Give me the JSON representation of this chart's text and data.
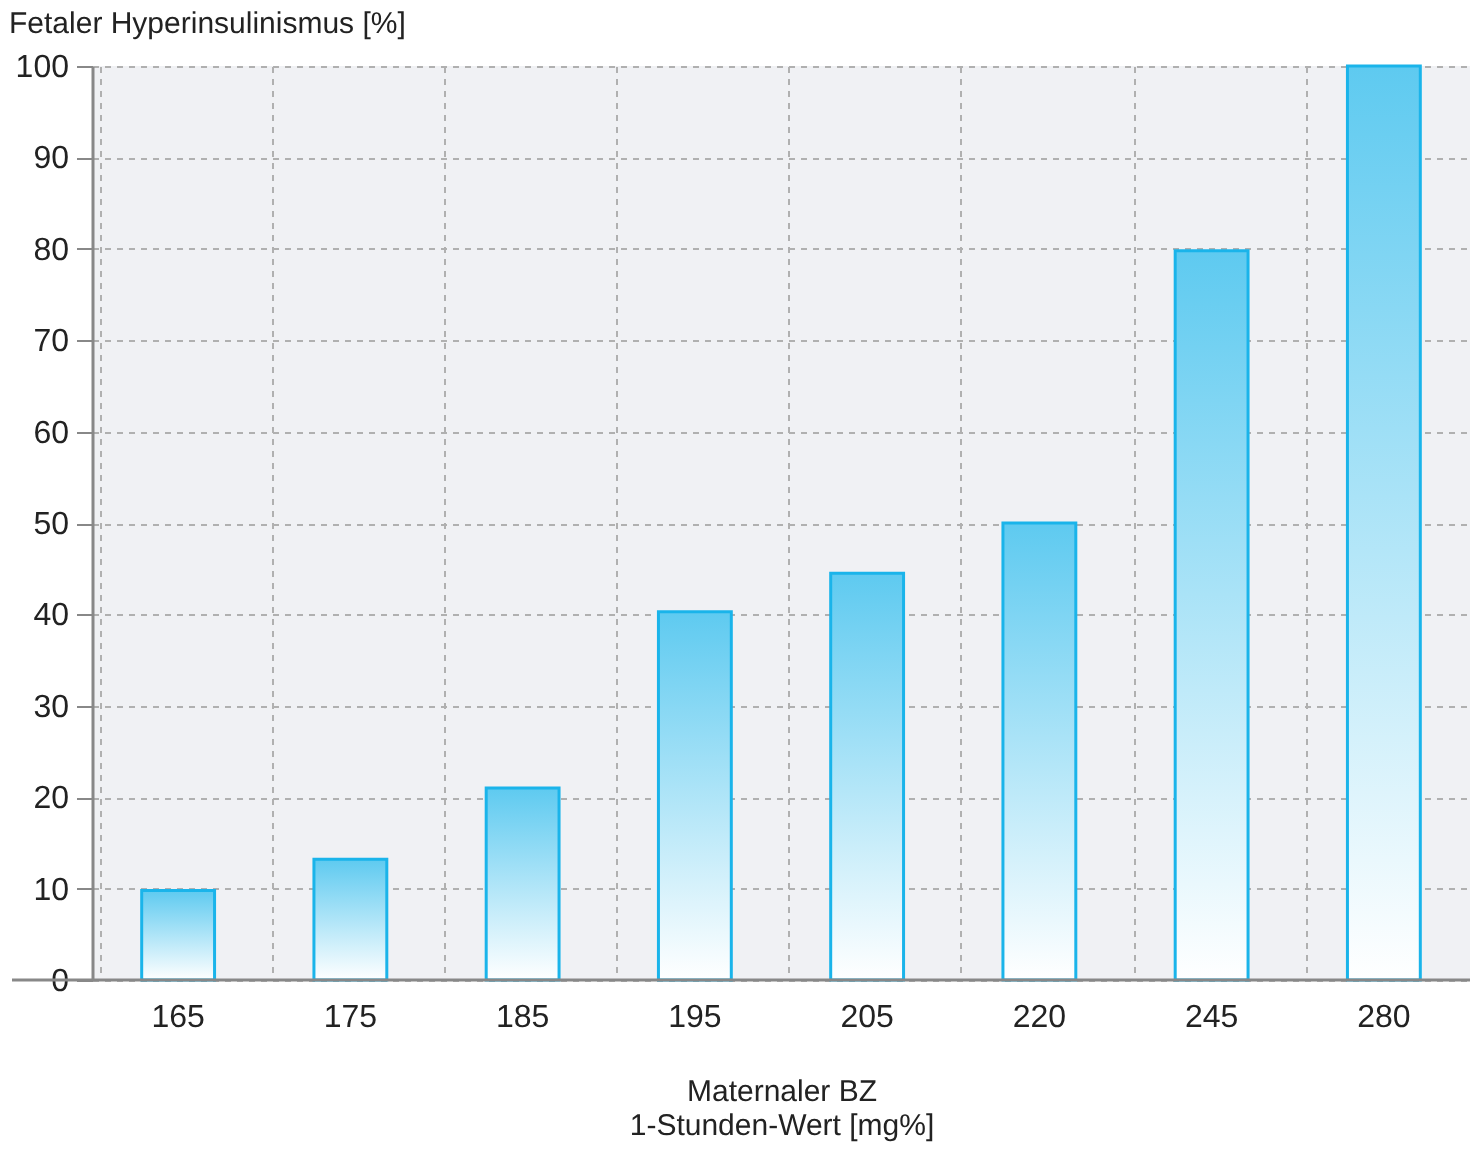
{
  "chart_data": {
    "type": "bar",
    "ylabel": "Fetaler Hyperinsulinismus [%]",
    "xlabel": "Maternaler BZ\n1-Stunden-Wert [mg%]",
    "categories": [
      "165",
      "175",
      "185",
      "195",
      "205",
      "220",
      "245",
      "280"
    ],
    "values": [
      9.8,
      13.2,
      21,
      40.3,
      44.5,
      50,
      79.8,
      100
    ],
    "color": "#1ab4ea",
    "ylim": [
      0,
      100
    ],
    "yticks": [
      0,
      10,
      20,
      30,
      40,
      50,
      60,
      70,
      80,
      90,
      100
    ],
    "grid": true
  }
}
